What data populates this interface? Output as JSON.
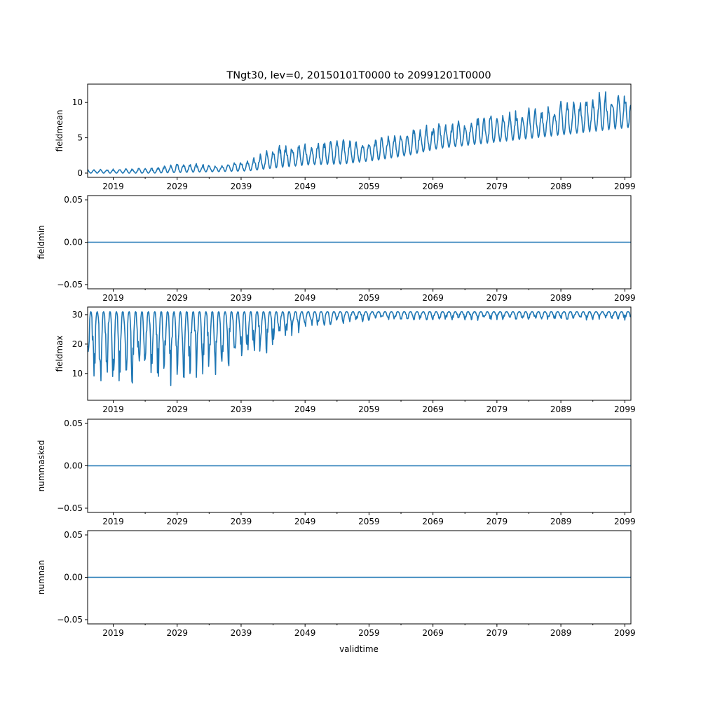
{
  "chart_data": {
    "type": "line",
    "title": "TNgt30, lev=0, 20150101T0000 to 20991201T0000",
    "xlabel": "validtime",
    "xlim": [
      2015.0,
      2099.95
    ],
    "xticks": [
      "2019",
      "2029",
      "2039",
      "2049",
      "2059",
      "2069",
      "2079",
      "2089",
      "2099"
    ],
    "color": "#1f77b4",
    "time_resolution": "monthly",
    "panels": [
      {
        "ylabel": "fieldmean",
        "ylim": [
          -0.6,
          12.6
        ],
        "yticks": [
          "0",
          "5",
          "10"
        ],
        "ytick_values": [
          0,
          5,
          10
        ],
        "envelope_years": [
          2015,
          2020,
          2025,
          2030,
          2035,
          2040,
          2045,
          2050,
          2055,
          2060,
          2065,
          2070,
          2075,
          2080,
          2085,
          2090,
          2095,
          2100
        ],
        "seasonal_peak": [
          0.4,
          0.5,
          0.6,
          1.2,
          1.0,
          1.5,
          3.5,
          3.8,
          4.2,
          4.5,
          5.5,
          6.5,
          7.0,
          8.2,
          8.5,
          9.5,
          10.5,
          10.5
        ],
        "seasonal_trough": [
          0.0,
          0.0,
          0.0,
          0.1,
          0.2,
          0.3,
          0.8,
          1.2,
          1.3,
          1.8,
          2.5,
          3.5,
          4.0,
          4.5,
          5.0,
          5.5,
          6.0,
          6.5
        ]
      },
      {
        "ylabel": "fieldmin",
        "ylim": [
          -0.055,
          0.055
        ],
        "yticks": [
          "−0.05",
          "0.00",
          "0.05"
        ],
        "ytick_values": [
          -0.05,
          0,
          0.05
        ],
        "constant": 0
      },
      {
        "ylabel": "fieldmax",
        "ylim": [
          0.9,
          32.6
        ],
        "yticks": [
          "10",
          "20",
          "30"
        ],
        "ytick_values": [
          10,
          20,
          30
        ],
        "envelope_years": [
          2015,
          2020,
          2025,
          2030,
          2035,
          2040,
          2045,
          2050,
          2055,
          2060,
          2065,
          2100
        ],
        "seasonal_peak": [
          31,
          31,
          31,
          31,
          31,
          31,
          31,
          31,
          31,
          31,
          31,
          31
        ],
        "seasonal_trough": [
          3,
          4,
          5,
          6,
          8,
          12,
          20,
          25,
          27,
          28,
          28,
          28
        ]
      },
      {
        "ylabel": "nummasked",
        "ylim": [
          -0.055,
          0.055
        ],
        "yticks": [
          "−0.05",
          "0.00",
          "0.05"
        ],
        "ytick_values": [
          -0.05,
          0,
          0.05
        ],
        "constant": 0
      },
      {
        "ylabel": "numnan",
        "ylim": [
          -0.055,
          0.055
        ],
        "yticks": [
          "−0.05",
          "0.00",
          "0.05"
        ],
        "ytick_values": [
          -0.05,
          0,
          0.05
        ],
        "constant": 0
      }
    ]
  }
}
